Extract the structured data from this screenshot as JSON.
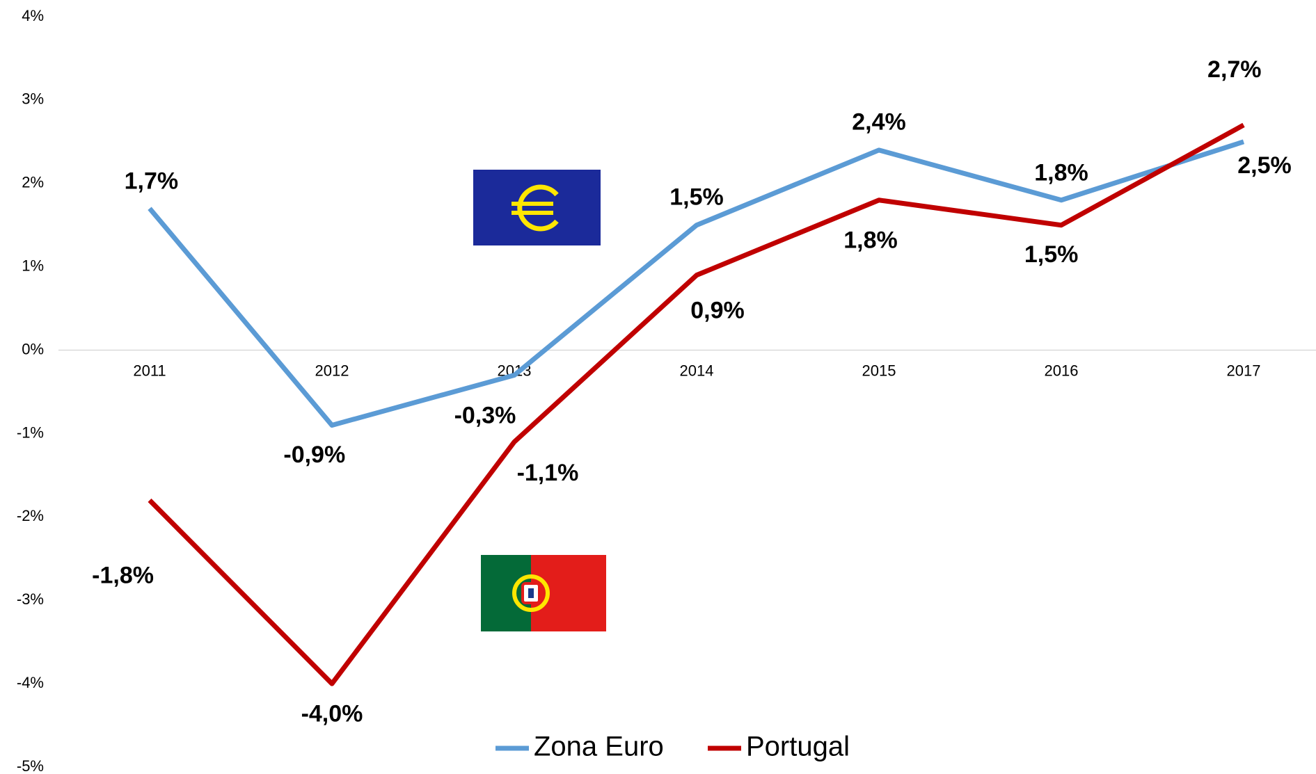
{
  "chart_data": {
    "type": "line",
    "categories": [
      "2011",
      "2012",
      "2013",
      "2014",
      "2015",
      "2016",
      "2017"
    ],
    "series": [
      {
        "name": "Zona Euro",
        "color": "#5b9bd5",
        "values": [
          1.7,
          -0.9,
          -0.3,
          1.5,
          2.4,
          1.8,
          2.5
        ],
        "value_labels": [
          "1,7%",
          "-0,9%",
          "-0,3%",
          "1,5%",
          "2,4%",
          "1,8%",
          "2,5%"
        ]
      },
      {
        "name": "Portugal",
        "color": "#c00000",
        "values": [
          -1.8,
          -4.0,
          -1.1,
          0.9,
          1.8,
          1.5,
          2.7
        ],
        "value_labels": [
          "-1,8%",
          "-4,0%",
          "-1,1%",
          "0,9%",
          "1,8%",
          "1,5%",
          "2,7%"
        ]
      }
    ],
    "ylim": [
      -5,
      4
    ],
    "yticks": [
      {
        "value": -5,
        "label": "-5%"
      },
      {
        "value": -4,
        "label": "-4%"
      },
      {
        "value": -3,
        "label": "-3%"
      },
      {
        "value": -2,
        "label": "-2%"
      },
      {
        "value": -1,
        "label": "-1%"
      },
      {
        "value": 0,
        "label": "0%"
      },
      {
        "value": 1,
        "label": "1%"
      },
      {
        "value": 2,
        "label": "2%"
      },
      {
        "value": 3,
        "label": "3%"
      },
      {
        "value": 4,
        "label": "4%"
      }
    ],
    "grid": false,
    "legend": "bottom"
  }
}
